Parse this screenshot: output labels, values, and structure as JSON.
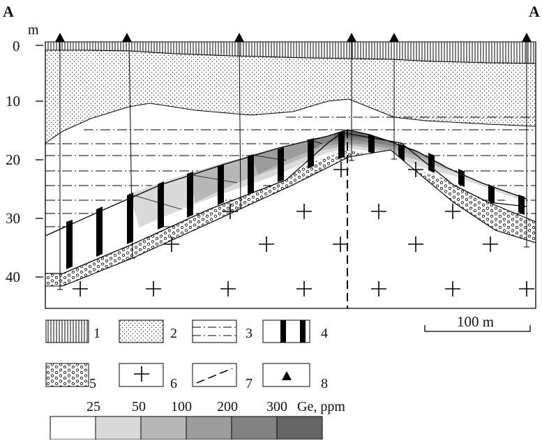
{
  "section": {
    "label_left": "A",
    "label_right": "A",
    "depth_unit": "m",
    "depth_ticks": [
      "0",
      "10",
      "20",
      "30",
      "40"
    ],
    "scale_bar_label": "100 m"
  },
  "legend": [
    {
      "number": "1",
      "pattern": "vertical-hatch"
    },
    {
      "number": "2",
      "pattern": "fine-dots"
    },
    {
      "number": "3",
      "pattern": "dash-dot-lines"
    },
    {
      "number": "4",
      "pattern": "black-stripes"
    },
    {
      "number": "5",
      "pattern": "circles"
    },
    {
      "number": "6",
      "pattern": "crosses"
    },
    {
      "number": "7",
      "pattern": "dashed-line"
    },
    {
      "number": "8",
      "pattern": "triangle"
    }
  ],
  "ge_scale": {
    "values": [
      "25",
      "50",
      "100",
      "200",
      "300"
    ],
    "unit_label": "Ge, ppm",
    "colors": [
      "#ffffff",
      "#dadada",
      "#b8b8b8",
      "#9c9c9c",
      "#828282",
      "#666666"
    ]
  }
}
